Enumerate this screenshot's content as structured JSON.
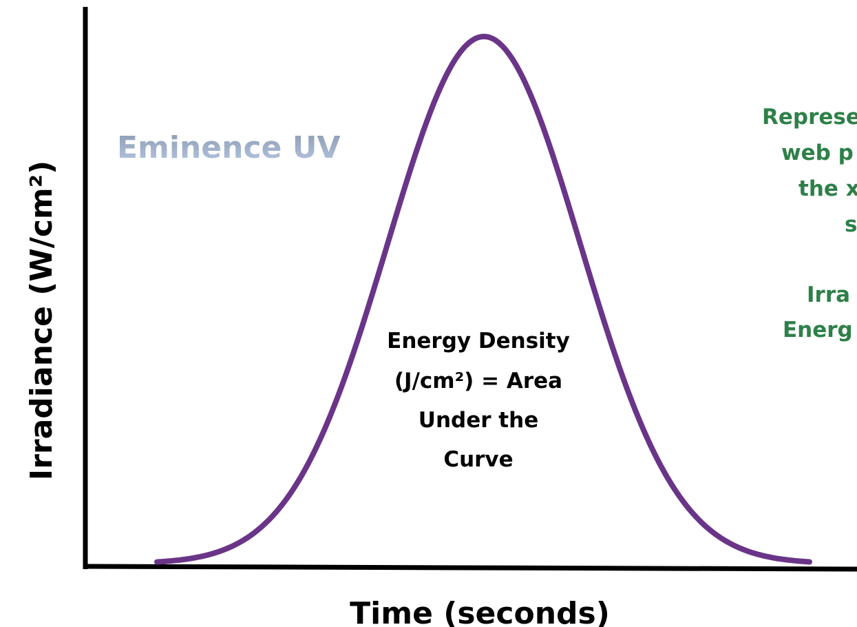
{
  "brand": "Eminence UV",
  "y_axis_label": "Irradiance (W/cm²)",
  "x_axis_label": "Time (seconds)",
  "curve_label": [
    "Energy Density",
    "(J/cm²) = Area",
    "Under the",
    "Curve"
  ],
  "side_note": [
    "Represe",
    "web p",
    "the x",
    "s",
    "Irra",
    "Energ"
  ]
}
